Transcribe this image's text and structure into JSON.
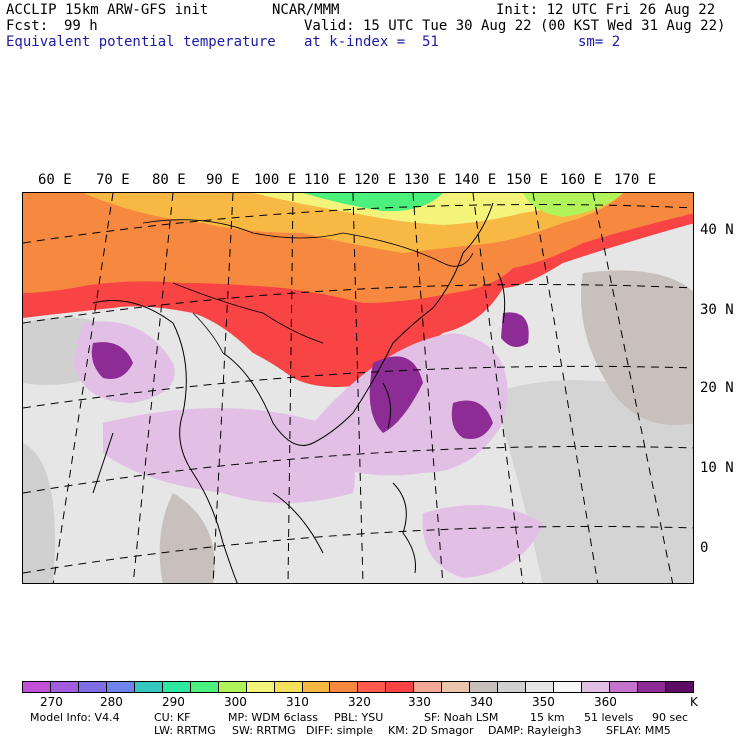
{
  "header": {
    "model": "ACCLIP 15km ARW-GFS init",
    "org": "NCAR/MMM",
    "init": "Init: 12 UTC Fri 26 Aug 22",
    "fcst_label": "Fcst:",
    "fcst_value": "99 h",
    "valid": "Valid: 15 UTC Tue 30 Aug 22 (00 KST Wed 31 Aug 22)",
    "field": "Equivalent potential temperature",
    "level": "at k-index =  51",
    "smooth": "sm= 2"
  },
  "map": {
    "lon_labels": [
      "60 E",
      "70 E",
      "80 E",
      "90 E",
      "100 E",
      "110 E",
      "120 E",
      "130 E",
      "140 E",
      "150 E",
      "160 E",
      "170 E"
    ],
    "lat_labels": [
      "40 N",
      "30 N",
      "20 N",
      "10 N",
      "0"
    ]
  },
  "colorbar": {
    "colors": [
      "#c450d8",
      "#a25ce0",
      "#7f6de6",
      "#6f84ea",
      "#36c8c0",
      "#2ee8a0",
      "#4cf07c",
      "#b0f45a",
      "#f4f47a",
      "#f4e05a",
      "#f8b844",
      "#f78840",
      "#ff5a50",
      "#f84444",
      "#f4a896",
      "#ecc4ac",
      "#c8c0bc",
      "#d0d0d0",
      "#e6e6e6",
      "#f8f8f8",
      "#e2c0e6",
      "#c474cc",
      "#8c2c94",
      "#5c0c64"
    ],
    "tick_labels": [
      "270",
      "280",
      "290",
      "300",
      "310",
      "320",
      "330",
      "340",
      "350",
      "360",
      "K"
    ]
  },
  "footer": {
    "line1": [
      "Model Info: V4.4",
      "CU: KF",
      "MP: WDM 6class",
      "PBL: YSU",
      "SF: Noah LSM",
      "15 km",
      "51 levels",
      "90 sec"
    ],
    "line2": [
      "LW: RRTMG",
      "SW: RRTMG",
      "DIFF: simple",
      "KM: 2D Smagor",
      "DAMP: Rayleigh3",
      "SFLAY: MM5"
    ]
  }
}
